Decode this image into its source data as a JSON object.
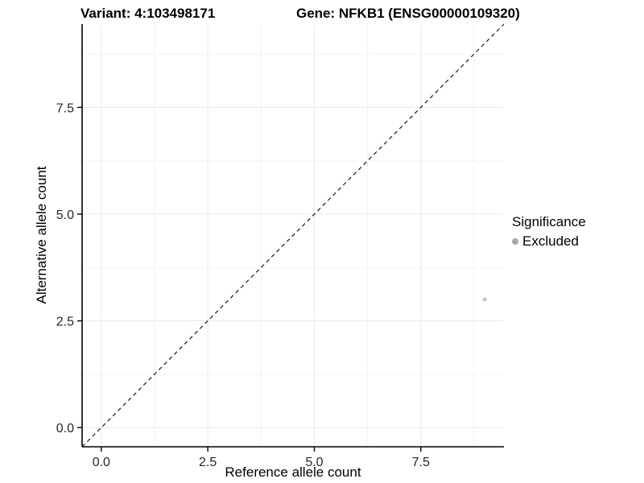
{
  "chart_data": {
    "type": "scatter",
    "titles": {
      "left": "Variant: 4:103498171",
      "right": "Gene: NFKB1 (ENSG00000109320)"
    },
    "xlabel": "Reference allele count",
    "ylabel": "Alternative allele count",
    "xlim": [
      -0.45,
      9.45
    ],
    "ylim": [
      -0.45,
      9.45
    ],
    "xticks": {
      "values": [
        0,
        2.5,
        5,
        7.5
      ],
      "labels": [
        "0.0",
        "2.5",
        "5.0",
        "7.5"
      ]
    },
    "yticks": {
      "values": [
        0,
        2.5,
        5,
        7.5
      ],
      "labels": [
        "0.0",
        "2.5",
        "5.0",
        "7.5"
      ]
    },
    "minor_breaks": [
      1.25,
      3.75,
      6.25,
      8.75
    ],
    "grid": {
      "major_color": "#e9e9e9",
      "minor_color": "#f3f3f3",
      "background": "#ffffff"
    },
    "axis_color": "#000000",
    "identity_line": {
      "style": "dashed",
      "color": "#1a1a1a",
      "from": -0.45,
      "to": 9.45
    },
    "series": [
      {
        "name": "Excluded",
        "color": "#c5c5c5",
        "point_radius": 2.5,
        "points": [
          {
            "x": 9,
            "y": 3
          }
        ]
      }
    ],
    "legend": {
      "title": "Significance",
      "position": "right",
      "entries": [
        {
          "label": "Excluded",
          "color": "#a9a9a9"
        }
      ]
    }
  }
}
